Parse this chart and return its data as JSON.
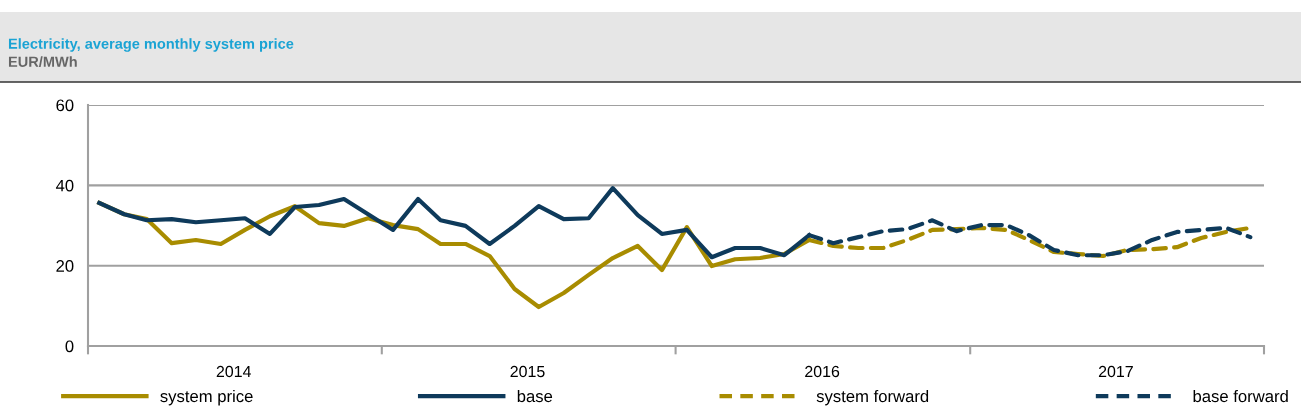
{
  "chart_data": {
    "type": "line",
    "title": "Electricity, average monthly system price",
    "subtitle": "EUR/MWh",
    "x": [
      "2014-01-15",
      "2014-02-15",
      "2014-03-15",
      "2014-04-15",
      "2014-05-15",
      "2014-06-15",
      "2014-07-15",
      "2014-08-15",
      "2014-09-15",
      "2014-10-15",
      "2014-11-15",
      "2014-12-15",
      "2015-01-15",
      "2015-02-15",
      "2015-03-15",
      "2015-04-15",
      "2015-05-15",
      "2015-06-15",
      "2015-07-15",
      "2015-08-15",
      "2015-09-15",
      "2015-10-15",
      "2015-11-15",
      "2015-12-15",
      "2016-01-15",
      "2016-02-15",
      "2016-03-15",
      "2016-04-15",
      "2016-05-15",
      "2016-06-15",
      "2016-07-15",
      "2016-08-15",
      "2016-09-15",
      "2016-10-15",
      "2016-11-15",
      "2016-12-15",
      "2017-01-15",
      "2017-02-15",
      "2017-03-15",
      "2017-04-15",
      "2017-05-15",
      "2017-06-15",
      "2017-07-15",
      "2017-08-15",
      "2017-09-15",
      "2017-10-15",
      "2017-11-15",
      "2017-12-15"
    ],
    "series": [
      {
        "name": "system price",
        "color": "#a88c00",
        "line_style": "solid",
        "values": [
          35.6,
          32.8,
          31.6,
          25.6,
          26.4,
          25.4,
          28.9,
          32.3,
          34.8,
          30.6,
          29.9,
          31.8,
          30.1,
          29.1,
          25.4,
          25.4,
          22.4,
          14.2,
          9.7,
          13.2,
          17.7,
          21.9,
          24.9,
          18.9,
          29.6,
          19.9,
          21.6,
          21.9,
          22.9,
          26.4,
          null,
          null,
          null,
          null,
          null,
          null,
          null,
          null,
          null,
          null,
          null,
          null,
          null,
          null,
          null,
          null,
          null,
          null
        ]
      },
      {
        "name": "base",
        "color": "#0e3a5b",
        "line_style": "solid",
        "values": [
          35.6,
          32.8,
          31.3,
          31.6,
          30.8,
          31.3,
          31.8,
          27.9,
          34.6,
          35.1,
          36.6,
          32.8,
          28.9,
          36.6,
          31.3,
          29.9,
          25.4,
          29.9,
          34.8,
          31.6,
          31.8,
          39.3,
          32.6,
          27.9,
          28.9,
          22.1,
          24.4,
          24.4,
          22.6,
          27.6,
          null,
          null,
          null,
          null,
          null,
          null,
          null,
          null,
          null,
          null,
          null,
          null,
          null,
          null,
          null,
          null,
          null,
          null
        ]
      },
      {
        "name": "system forward",
        "color": "#a88c00",
        "line_style": "dashed",
        "values": [
          null,
          null,
          null,
          null,
          null,
          null,
          null,
          null,
          null,
          null,
          null,
          null,
          null,
          null,
          null,
          null,
          null,
          null,
          null,
          null,
          null,
          null,
          null,
          null,
          null,
          null,
          null,
          null,
          null,
          26.4,
          24.9,
          24.4,
          24.4,
          26.4,
          28.9,
          29.1,
          29.4,
          28.9,
          26.4,
          23.4,
          22.9,
          22.4,
          23.9,
          24.1,
          24.6,
          26.9,
          28.4,
          29.4
        ]
      },
      {
        "name": "base forward",
        "color": "#0e3a5b",
        "line_style": "dashed",
        "values": [
          null,
          null,
          null,
          null,
          null,
          null,
          null,
          null,
          null,
          null,
          null,
          null,
          null,
          null,
          null,
          null,
          null,
          null,
          null,
          null,
          null,
          null,
          null,
          null,
          null,
          null,
          null,
          null,
          null,
          27.6,
          25.6,
          27.1,
          28.6,
          29.1,
          31.3,
          28.6,
          30.1,
          30.1,
          27.6,
          23.9,
          22.6,
          22.6,
          23.6,
          26.4,
          28.4,
          28.9,
          29.4,
          27.1
        ]
      }
    ],
    "xlim": [
      "2014-01-01",
      "2018-01-01"
    ],
    "xticks": [
      {
        "value": "2014-01-01",
        "label": null
      },
      {
        "value": "2014-07-01",
        "label": "2014"
      },
      {
        "value": "2015-01-01",
        "label": null
      },
      {
        "value": "2015-07-01",
        "label": "2015"
      },
      {
        "value": "2016-01-01",
        "label": null
      },
      {
        "value": "2016-07-01",
        "label": "2016"
      },
      {
        "value": "2017-01-01",
        "label": null
      },
      {
        "value": "2017-07-01",
        "label": "2017"
      },
      {
        "value": "2018-01-01",
        "label": null
      }
    ],
    "ylim": [
      0,
      60
    ],
    "yticks": [
      0,
      20,
      40,
      60
    ],
    "grid": "y",
    "legend": "bottom",
    "marker": "none"
  }
}
